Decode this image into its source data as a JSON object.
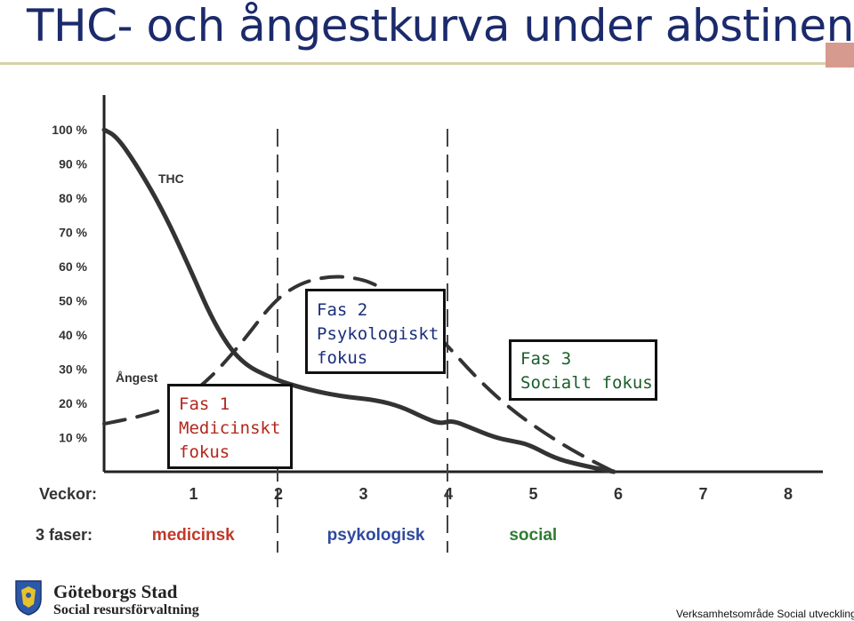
{
  "slide": {
    "title": "THC- och ångestkurva under abstinens"
  },
  "chart_data": {
    "type": "line",
    "title": "",
    "ylabel": "",
    "ylim": [
      0,
      100
    ],
    "y_ticks": [
      "100 %",
      "90 %",
      "80 %",
      "70 %",
      "60 %",
      "50 %",
      "40 %",
      "30 %",
      "20 %",
      "10 %"
    ],
    "x_axis_label": "Veckor:",
    "x_ticks": [
      "1",
      "2",
      "3",
      "4",
      "5",
      "6",
      "7",
      "8"
    ],
    "xlim": [
      0,
      8
    ],
    "phase_row_label": "3 faser:",
    "phases": [
      {
        "label": "medicinsk",
        "color": "#c0392b"
      },
      {
        "label": "psykologisk",
        "color": "#2e4a9e"
      },
      {
        "label": "social",
        "color": "#2e7d32"
      }
    ],
    "phase_dividers_weeks": [
      2,
      4
    ],
    "series": [
      {
        "name": "THC",
        "style": "solid",
        "color": "#333333",
        "x": [
          0,
          0.15,
          0.4,
          0.7,
          1.0,
          1.3,
          1.6,
          2.0,
          2.4,
          2.8,
          3.2,
          3.5,
          3.75,
          3.95,
          4.1,
          4.3,
          4.6,
          4.8,
          5.0,
          5.3,
          5.6,
          6.0
        ],
        "values": [
          100,
          98,
          89,
          76,
          60,
          43,
          32,
          27,
          24,
          22,
          21,
          19,
          16,
          14,
          15,
          13,
          10,
          9,
          8,
          4,
          2,
          0
        ]
      },
      {
        "name": "Ångest",
        "style": "dashed",
        "color": "#333333",
        "x": [
          0,
          0.4,
          0.8,
          1.2,
          1.6,
          2.0,
          2.3,
          2.6,
          2.9,
          3.2,
          3.6,
          4.0,
          4.4,
          4.8,
          5.2,
          5.6,
          6.0
        ],
        "values": [
          14,
          16,
          19,
          26,
          37,
          50,
          55,
          57,
          57,
          55,
          48,
          38,
          27,
          18,
          11,
          5,
          0
        ]
      }
    ],
    "annotations": [
      {
        "id": "fas1",
        "lines": [
          "Fas 1",
          "Medicinskt",
          "fokus"
        ]
      },
      {
        "id": "fas2",
        "lines": [
          "Fas 2",
          "Psykologiskt",
          "fokus"
        ]
      },
      {
        "id": "fas3",
        "lines": [
          "Fas 3",
          "Socialt fokus"
        ]
      }
    ],
    "grid": false,
    "legend": "none"
  },
  "footer": {
    "org_name": "Göteborgs Stad",
    "department": "Social resursförvaltning",
    "right_text": "Verksamhetsområde Social utveckling"
  },
  "colors": {
    "title": "#1b2a6b",
    "fas1": "#b0281c",
    "fas2": "#1a2e7a",
    "fas3": "#1a5e2a"
  }
}
